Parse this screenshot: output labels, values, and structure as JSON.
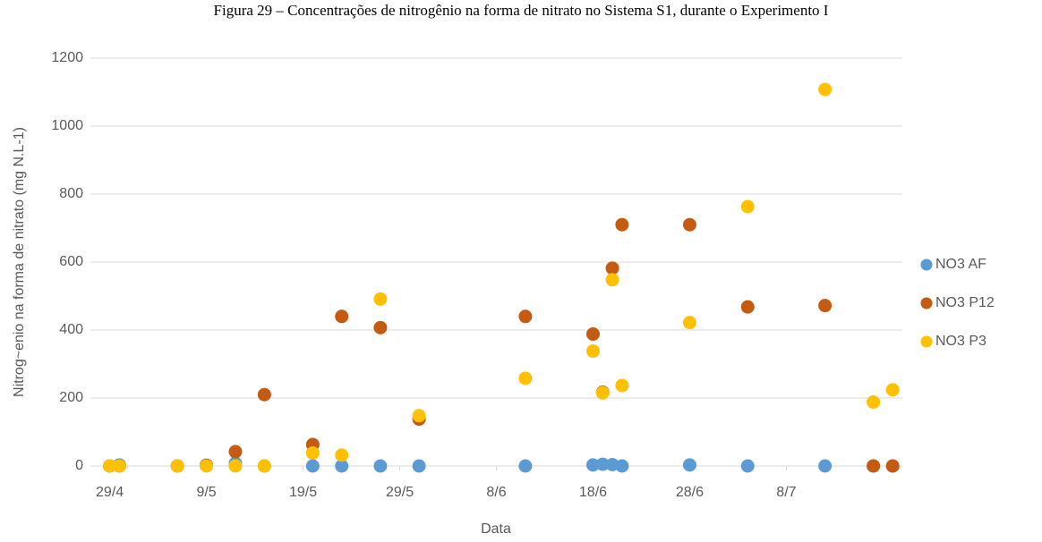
{
  "chart_data": {
    "type": "scatter",
    "title": "Figura 29 – Concentrações de nitrogênio na forma de nitrato no Sistema S1, durante o Experimento I",
    "xlabel": "Data",
    "ylabel": "Nitrog~enio na forma de nitrato (mg N.L-1)",
    "x": [
      "29/4",
      "30/4",
      "6/5",
      "9/5",
      "12/5",
      "15/5",
      "20/5",
      "23/5",
      "27/5",
      "31/5",
      "11/6",
      "18/6",
      "19/6",
      "20/6",
      "21/6",
      "28/6",
      "4/7",
      "12/7",
      "17/7",
      "19/7"
    ],
    "series": [
      {
        "name": "NO3 AF",
        "color": "#5b9bd5",
        "values": [
          0,
          3,
          0,
          2,
          8,
          0,
          0,
          0,
          0,
          0,
          0,
          3,
          5,
          4,
          0,
          3,
          0,
          0,
          0,
          0
        ]
      },
      {
        "name": "NO3 P12",
        "color": "#c55a11",
        "values": [
          0,
          0,
          0,
          2,
          42,
          210,
          63,
          440,
          407,
          138,
          440,
          388,
          217,
          582,
          710,
          710,
          468,
          472,
          0,
          0
        ]
      },
      {
        "name": "NO3 P3",
        "color": "#ffc000",
        "values": [
          0,
          0,
          0,
          0,
          0,
          0,
          38,
          32,
          491,
          148,
          258,
          338,
          215,
          548,
          237,
          422,
          763,
          1108,
          188,
          224
        ]
      }
    ],
    "xlim": [
      "27/4",
      "20/7"
    ],
    "xticks": [
      "29/4",
      "9/5",
      "19/5",
      "29/5",
      "8/6",
      "18/6",
      "28/6",
      "8/7"
    ],
    "ylim": [
      0,
      1200
    ],
    "yticks": [
      0,
      200,
      400,
      600,
      800,
      1000,
      1200
    ],
    "grid": true,
    "legend": "right"
  }
}
